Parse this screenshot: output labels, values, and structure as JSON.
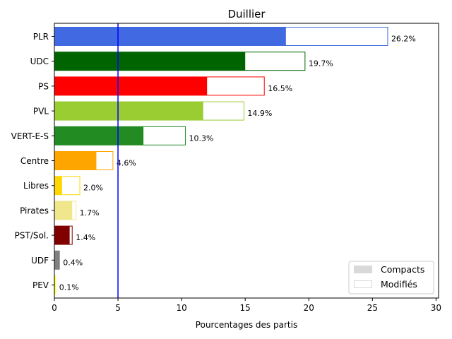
{
  "chart_data": {
    "type": "bar",
    "orientation": "horizontal",
    "title": "Duillier",
    "xlabel": "Pourcentages des partis",
    "ylabel": "",
    "xlim": [
      0,
      30.2
    ],
    "xticks": [
      0,
      5,
      10,
      15,
      20,
      25,
      30
    ],
    "grid": false,
    "threshold": {
      "value": 5,
      "color": "#0000ff"
    },
    "categories": [
      "PLR",
      "UDC",
      "PS",
      "PVL",
      "VERT-E-S",
      "Centre",
      "Libres",
      "Pirates",
      "PST/Sol.",
      "UDF",
      "PEV"
    ],
    "series": [
      {
        "name": "Compacts",
        "values": [
          18.2,
          15.0,
          12.0,
          11.7,
          7.0,
          3.3,
          0.6,
          1.4,
          1.2,
          0.4,
          0.05
        ]
      },
      {
        "name": "Modifiés",
        "values": [
          26.2,
          19.7,
          16.5,
          14.9,
          10.3,
          4.6,
          2.0,
          1.7,
          1.4,
          0.4,
          0.1
        ]
      }
    ],
    "data_labels": [
      "26.2%",
      "19.7%",
      "16.5%",
      "14.9%",
      "10.3%",
      "4.6%",
      "2.0%",
      "1.7%",
      "1.4%",
      "0.4%",
      "0.1%"
    ],
    "colors": [
      "#4169e1",
      "#006400",
      "#ff0000",
      "#9acd32",
      "#228b22",
      "#ffa500",
      "#ffd700",
      "#f0e68c",
      "#800000",
      "#808080",
      "#ffff00"
    ],
    "legend": {
      "placement": "bottom-right",
      "entries": [
        {
          "label": "Compacts",
          "style": "filled",
          "color": "#d9d9d9"
        },
        {
          "label": "Modifiés",
          "style": "outline",
          "color": "#d9d9d9"
        }
      ]
    }
  }
}
